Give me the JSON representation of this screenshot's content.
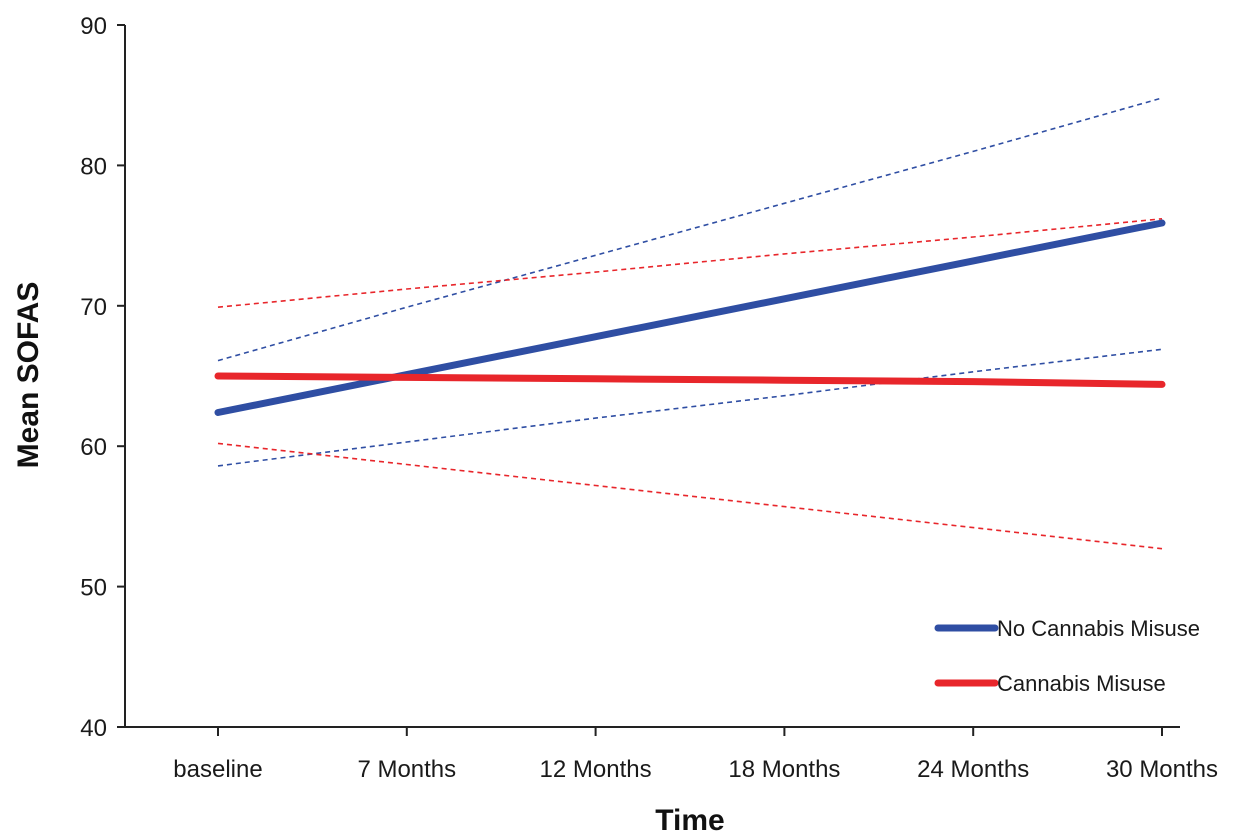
{
  "chart_data": {
    "type": "line",
    "title": "",
    "xlabel": "Time",
    "ylabel": "Mean SOFAS",
    "categories": [
      "baseline",
      "7 Months",
      "12 Months",
      "18 Months",
      "24 Months",
      "30 Months"
    ],
    "ylim": [
      40,
      90
    ],
    "yticks": [
      40,
      50,
      60,
      70,
      80,
      90
    ],
    "grid": false,
    "legend_position": "bottom-right",
    "series": [
      {
        "name": "No Cannabis Misuse",
        "color": "#2f4ea3",
        "style": "solid",
        "values": [
          62.4,
          65.1,
          67.8,
          70.5,
          73.2,
          75.9
        ]
      },
      {
        "name": "Cannabis Misuse",
        "color": "#e8262b",
        "style": "solid",
        "values": [
          65.0,
          64.9,
          64.8,
          64.7,
          64.6,
          64.4
        ]
      }
    ],
    "confidence_bands": [
      {
        "of": "No Cannabis Misuse",
        "color": "#2f4ea3",
        "style": "dashed",
        "upper": [
          66.1,
          69.9,
          73.6,
          77.3,
          81.0,
          84.8
        ],
        "lower": [
          58.6,
          60.3,
          62.0,
          63.6,
          65.3,
          66.9
        ]
      },
      {
        "of": "Cannabis Misuse",
        "color": "#e8262b",
        "style": "dashed",
        "upper": [
          69.9,
          71.2,
          72.4,
          73.7,
          74.9,
          76.2
        ],
        "lower": [
          60.2,
          58.7,
          57.2,
          55.7,
          54.2,
          52.7
        ]
      }
    ]
  }
}
